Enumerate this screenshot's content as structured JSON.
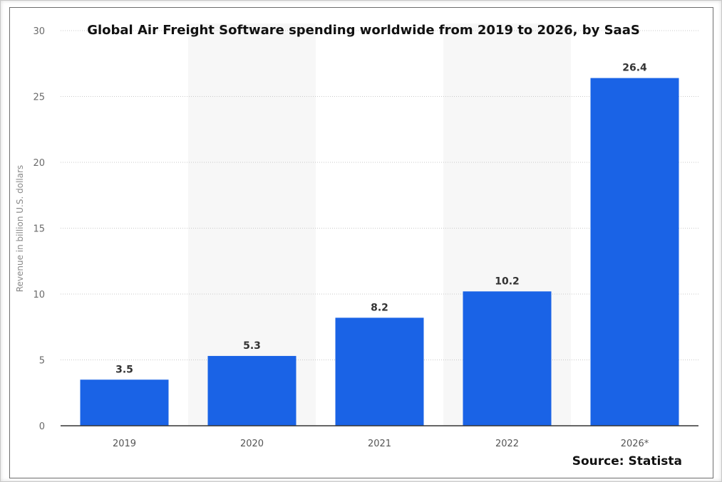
{
  "chart_data": {
    "type": "bar",
    "title": "Global Air Freight Software spending worldwide from 2019 to 2026, by SaaS",
    "ylabel": "Revenue in billion U.S. dollars",
    "xlabel": "",
    "categories": [
      "2019",
      "2020",
      "2021",
      "2022",
      "2026*"
    ],
    "values": [
      3.5,
      5.3,
      8.2,
      10.2,
      26.4
    ],
    "value_labels": [
      "3.5",
      "5.3",
      "8.2",
      "10.2",
      "26.4"
    ],
    "ylim": [
      0,
      30
    ],
    "yticks": [
      0,
      5,
      10,
      15,
      20,
      25,
      30
    ],
    "grid": true,
    "bar_color": "#1a63e6",
    "alt_band_color": "#f7f7f7",
    "source": "Source: Statista"
  }
}
